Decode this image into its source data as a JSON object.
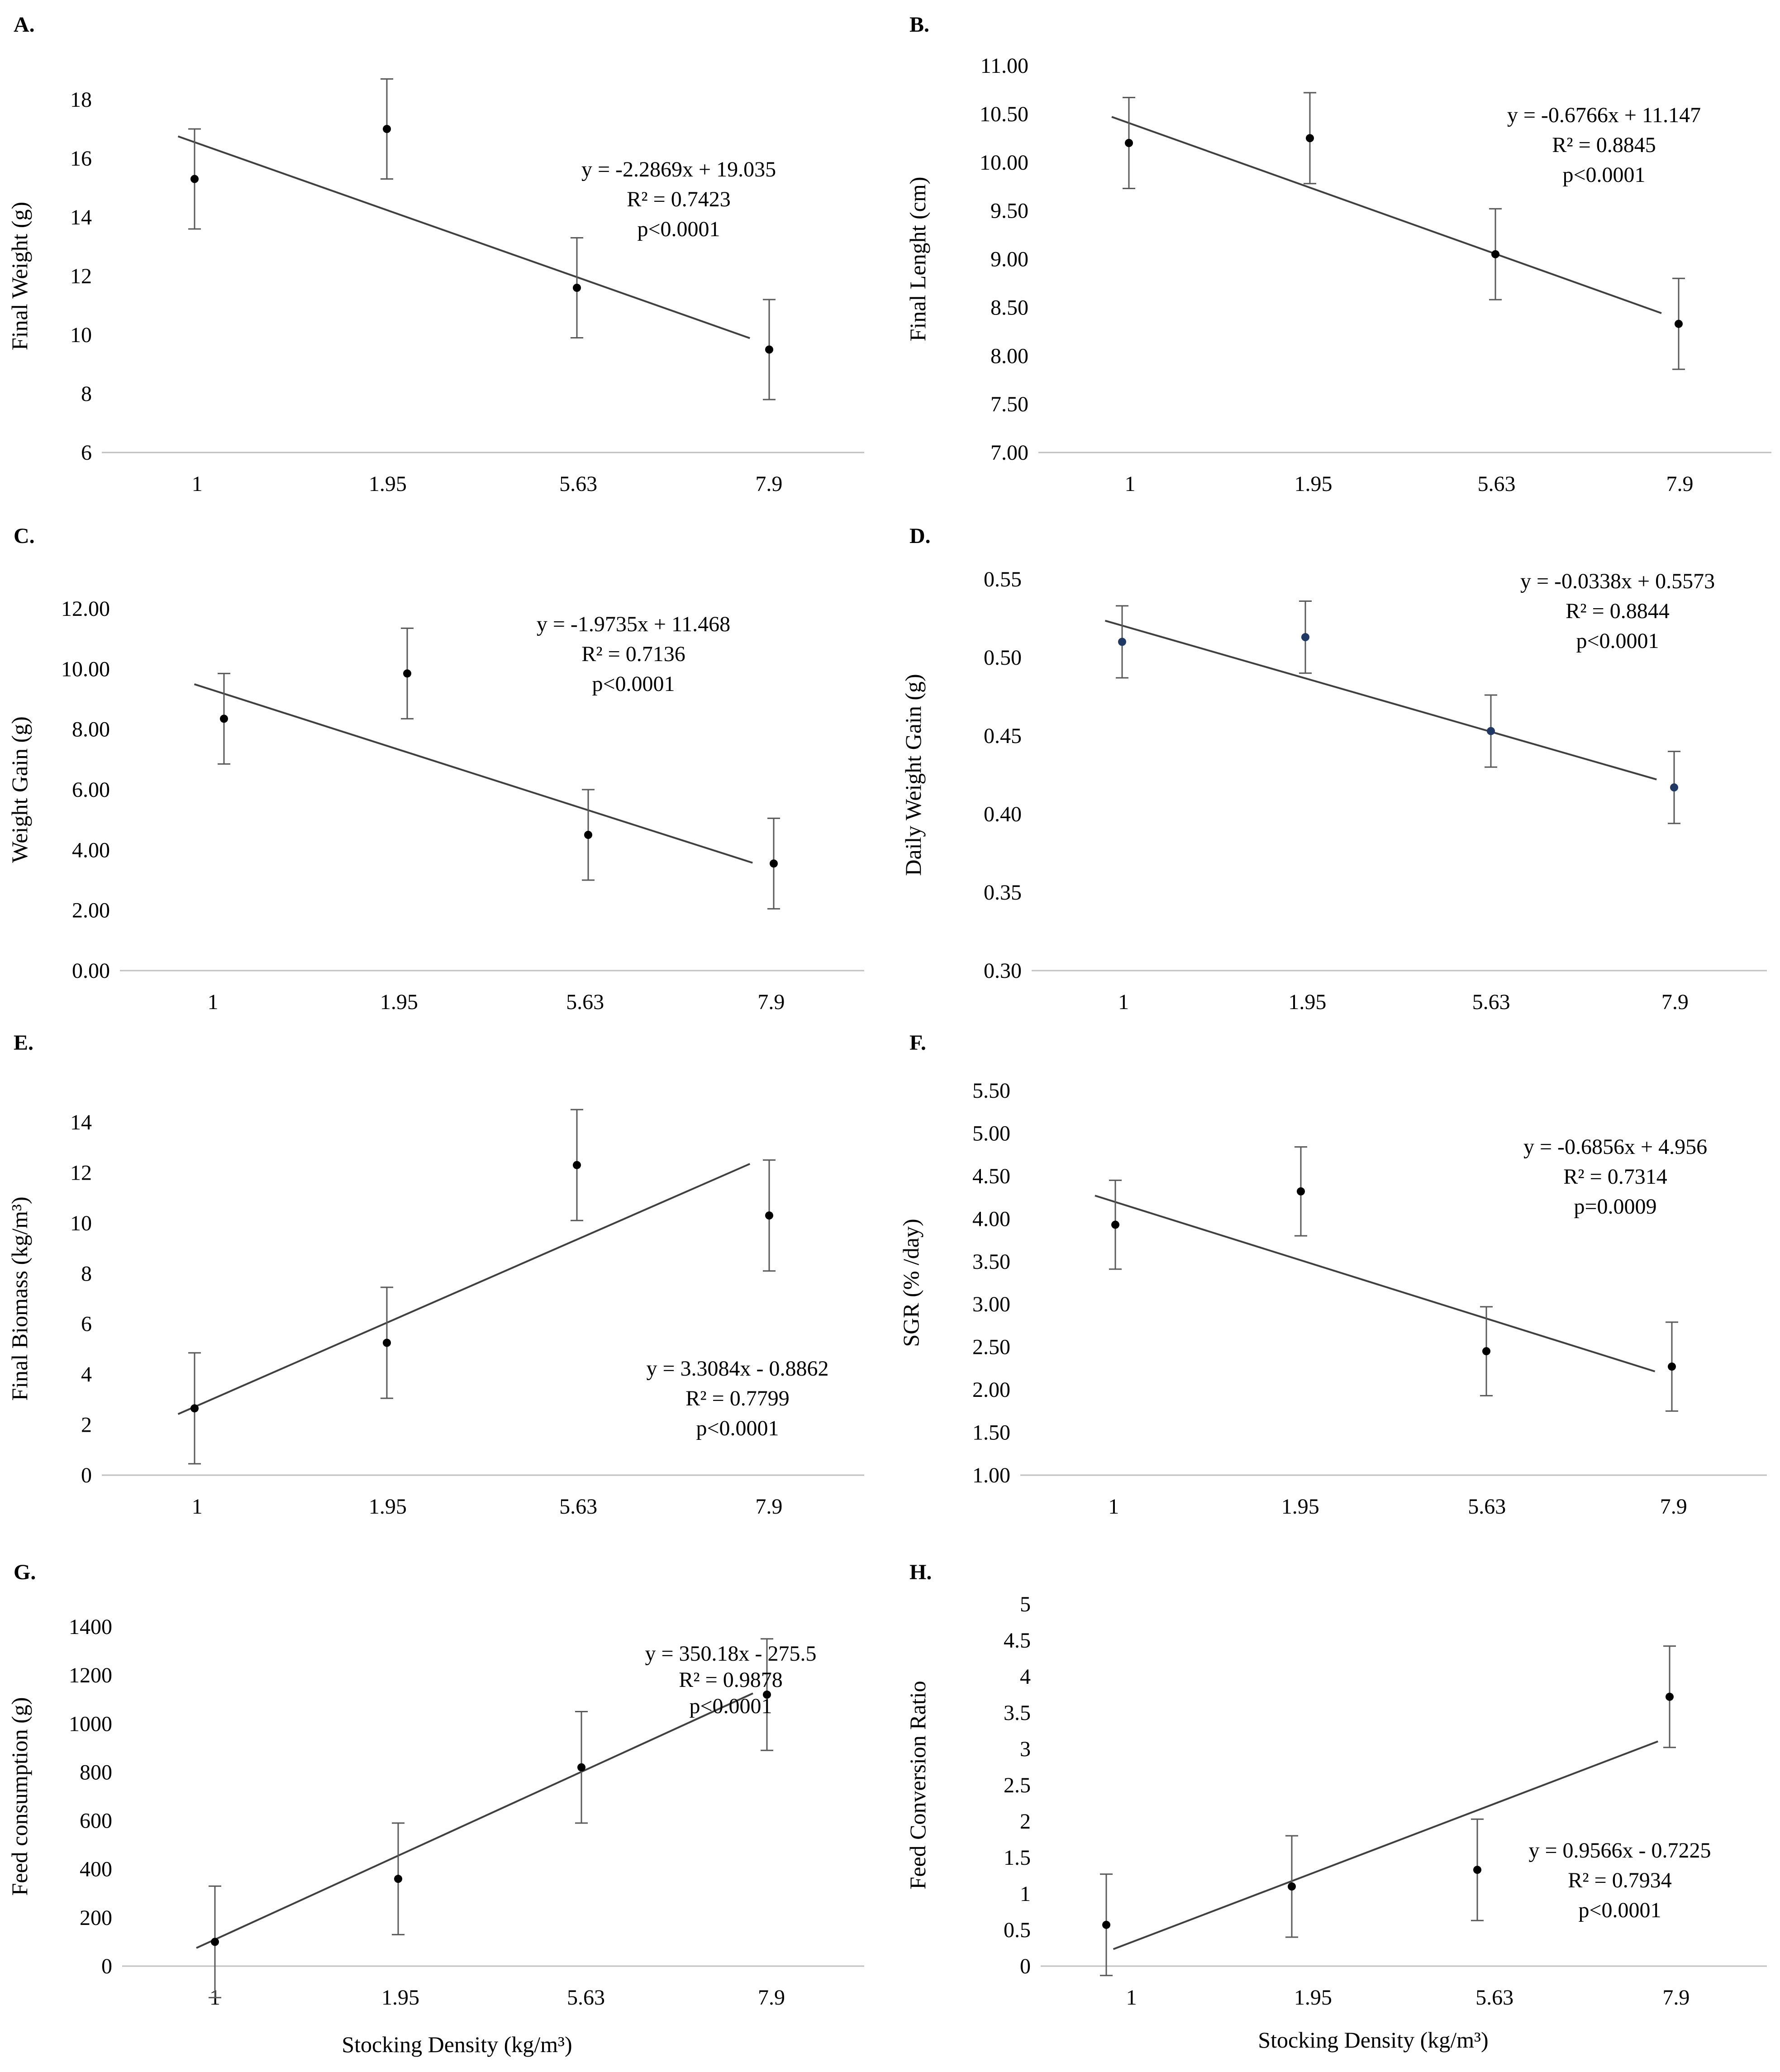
{
  "figure_xlabel": "Stocking Density (kg/m³)",
  "chart_data": [
    {
      "id": "A",
      "label": "A.",
      "type": "scatter",
      "ylabel": "Final Weight (g)",
      "xlabel": "",
      "categories": [
        "1",
        "1.95",
        "5.63",
        "7.9"
      ],
      "values": [
        15.3,
        17.0,
        11.6,
        9.5
      ],
      "errors": [
        1.7,
        1.7,
        1.7,
        1.7
      ],
      "ylim": [
        6,
        18
      ],
      "yticks": [
        "6",
        "8",
        "10",
        "12",
        "14",
        "16",
        "18"
      ],
      "trend": {
        "slope": -2.2869,
        "intercept": 19.035
      },
      "annotation": [
        "y = -2.2869x + 19.035",
        "R² = 0.7423",
        "p<0.0001"
      ]
    },
    {
      "id": "B",
      "label": "B.",
      "type": "scatter",
      "ylabel": "Final Lenght (cm)",
      "xlabel": "",
      "categories": [
        "1",
        "1.95",
        "5.63",
        "7.9"
      ],
      "values": [
        10.2,
        10.25,
        9.05,
        8.33
      ],
      "errors": [
        0.47,
        0.47,
        0.47,
        0.47
      ],
      "ylim": [
        7,
        11
      ],
      "yticks": [
        "7.00",
        "7.50",
        "8.00",
        "8.50",
        "9.00",
        "9.50",
        "10.00",
        "10.50",
        "11.00"
      ],
      "trend": {
        "slope": -0.6766,
        "intercept": 11.147
      },
      "annotation": [
        "y = -0.6766x + 11.147",
        "R² = 0.8845",
        "p<0.0001"
      ]
    },
    {
      "id": "C",
      "label": "C.",
      "type": "scatter",
      "ylabel": "Weight Gain (g)",
      "xlabel": "",
      "categories": [
        "1",
        "1.95",
        "5.63",
        "7.9"
      ],
      "values": [
        8.35,
        9.85,
        4.5,
        3.55
      ],
      "errors": [
        1.5,
        1.5,
        1.5,
        1.5
      ],
      "ylim": [
        0,
        12
      ],
      "yticks": [
        "0.00",
        "2.00",
        "4.00",
        "6.00",
        "8.00",
        "10.00",
        "12.00"
      ],
      "trend": {
        "slope": -1.9735,
        "intercept": 11.468
      },
      "annotation": [
        "y = -1.9735x + 11.468",
        "R² = 0.7136",
        "p<0.0001"
      ]
    },
    {
      "id": "D",
      "label": "D.",
      "type": "scatter",
      "ylabel": "Daily Weight Gain (g)",
      "xlabel": "",
      "categories": [
        "1",
        "1.95",
        "5.63",
        "7.9"
      ],
      "values": [
        0.51,
        0.513,
        0.453,
        0.417
      ],
      "errors": [
        0.023,
        0.023,
        0.023,
        0.023
      ],
      "ylim": [
        0.3,
        0.55
      ],
      "yticks": [
        "0.30",
        "0.35",
        "0.40",
        "0.45",
        "0.50",
        "0.55"
      ],
      "trend": {
        "slope": -0.0338,
        "intercept": 0.5573
      },
      "annotation": [
        "y = -0.0338x + 0.5573",
        "R² = 0.8844",
        "p<0.0001"
      ]
    },
    {
      "id": "E",
      "label": "E.",
      "type": "scatter",
      "ylabel": "Final Biomass (kg/m³)",
      "xlabel": "",
      "categories": [
        "1",
        "1.95",
        "5.63",
        "7.9"
      ],
      "values": [
        2.65,
        5.25,
        12.3,
        10.3
      ],
      "errors": [
        2.2,
        2.2,
        2.2,
        2.2
      ],
      "ylim": [
        0,
        14
      ],
      "yticks": [
        "0",
        "2",
        "4",
        "6",
        "8",
        "10",
        "12",
        "14"
      ],
      "trend": {
        "slope": 3.3084,
        "intercept": -0.8862
      },
      "annotation": [
        "y = 3.3084x - 0.8862",
        "R² = 0.7799",
        "p<0.0001"
      ]
    },
    {
      "id": "F",
      "label": "F.",
      "type": "scatter",
      "ylabel": "SGR (% /day)",
      "xlabel": "",
      "categories": [
        "1",
        "1.95",
        "5.63",
        "7.9"
      ],
      "values": [
        3.93,
        4.32,
        2.45,
        2.27
      ],
      "errors": [
        0.52,
        0.52,
        0.52,
        0.52
      ],
      "ylim": [
        1,
        5.5
      ],
      "yticks": [
        "1.00",
        "1.50",
        "2.00",
        "2.50",
        "3.00",
        "3.50",
        "4.00",
        "4.50",
        "5.00",
        "5.50"
      ],
      "trend": {
        "slope": -0.6856,
        "intercept": 4.956
      },
      "annotation": [
        "y = -0.6856x + 4.956",
        "R² = 0.7314",
        "p=0.0009"
      ]
    },
    {
      "id": "G",
      "label": "G.",
      "type": "scatter",
      "ylabel": "Feed consumption (g)",
      "xlabel": "Stocking Density (kg/m³)",
      "categories": [
        "1",
        "1.95",
        "5.63",
        "7.9"
      ],
      "values": [
        100,
        360,
        820,
        1120
      ],
      "errors": [
        230,
        230,
        230,
        230
      ],
      "ylim": [
        0,
        1400
      ],
      "yticks": [
        "0",
        "200",
        "400",
        "600",
        "800",
        "1000",
        "1200",
        "1400"
      ],
      "trend": {
        "slope": 350.18,
        "intercept": -275.5
      },
      "annotation": [
        "y = 350.18x - 275.5",
        "R² = 0.9878",
        "p<0.0001"
      ]
    },
    {
      "id": "H",
      "label": "H.",
      "type": "scatter",
      "ylabel": "Feed Conversion Ratio",
      "xlabel": "Stocking Density (kg/m³)",
      "categories": [
        "1",
        "1.95",
        "5.63",
        "7.9"
      ],
      "values": [
        0.57,
        1.1,
        1.33,
        3.72
      ],
      "errors": [
        0.7,
        0.7,
        0.7,
        0.7
      ],
      "ylim": [
        0,
        5
      ],
      "yticks": [
        "0",
        "0.5",
        "1",
        "1.5",
        "2",
        "2.5",
        "3",
        "3.5",
        "4",
        "4.5",
        "5"
      ],
      "trend": {
        "slope": 0.9566,
        "intercept": -0.7225
      },
      "annotation": [
        "y = 0.9566x - 0.7225",
        "R² = 0.7934",
        "p<0.0001"
      ]
    }
  ]
}
